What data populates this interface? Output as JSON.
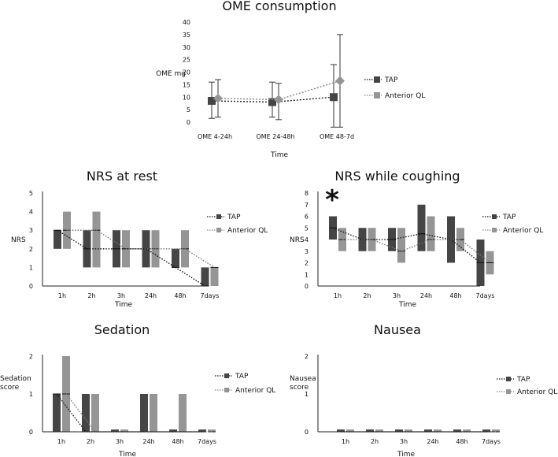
{
  "colors": {
    "tap": "#454545",
    "ql": "#959595",
    "axis": "#222222"
  },
  "chart_data": [
    {
      "id": "ome",
      "type": "line",
      "title": "OME consumption",
      "ylabel": "OME mg",
      "xlabel": "Time",
      "ylim": [
        0,
        40
      ],
      "yticks": [
        "0",
        "5",
        "10",
        "15",
        "20",
        "25",
        "30",
        "35",
        "40"
      ],
      "categories": [
        "OME 4-24h",
        "OME 24-48h",
        "OME 48-7d"
      ],
      "legend": [
        "TAP",
        "Anterior QL"
      ],
      "series": [
        {
          "name": "TAP",
          "values": [
            8.5,
            8,
            10
          ],
          "err_low": [
            1.5,
            2,
            -2
          ],
          "err_high": [
            16,
            16,
            23
          ]
        },
        {
          "name": "Anterior QL",
          "values": [
            9.5,
            9,
            16.5
          ],
          "err_low": [
            2,
            1,
            -2
          ],
          "err_high": [
            17,
            15.5,
            35
          ]
        }
      ]
    },
    {
      "id": "nrs_rest",
      "type": "bar",
      "title": "NRS at rest",
      "ylabel": "NRS",
      "xlabel": "Time",
      "ylim": [
        0,
        5
      ],
      "yticks": [
        "0",
        "1",
        "2",
        "3",
        "4",
        "5"
      ],
      "categories": [
        "1h",
        "2h",
        "3h",
        "24h",
        "48h",
        "7days"
      ],
      "legend": [
        "TAP",
        "Anterior QL"
      ],
      "series": [
        {
          "name": "TAP",
          "low": [
            2,
            1,
            1,
            1,
            1,
            0
          ],
          "high": [
            3,
            3,
            3,
            3,
            2,
            1
          ],
          "median": [
            3,
            2,
            2,
            2,
            1,
            0
          ]
        },
        {
          "name": "Anterior QL",
          "low": [
            2,
            1,
            1,
            1,
            1,
            0
          ],
          "high": [
            4,
            4,
            3,
            3,
            3,
            1
          ],
          "median": [
            3,
            3,
            2,
            2,
            2,
            1
          ]
        }
      ]
    },
    {
      "id": "nrs_cough",
      "type": "bar",
      "title": "NRS while coughing",
      "ylabel": "NRS",
      "xlabel": "Time",
      "ylim": [
        0,
        8
      ],
      "yticks": [
        "0",
        "1",
        "2",
        "3",
        "4",
        "5",
        "6",
        "7",
        "8"
      ],
      "categories": [
        "1h",
        "2h",
        "3h",
        "24h",
        "48h",
        "7days"
      ],
      "legend": [
        "TAP",
        "Anterior QL"
      ],
      "annotation": "*",
      "series": [
        {
          "name": "TAP",
          "low": [
            4,
            3,
            3,
            3,
            2,
            0
          ],
          "high": [
            6,
            5,
            5,
            7,
            6,
            4
          ],
          "median": [
            5,
            4,
            4,
            4.5,
            4,
            2
          ]
        },
        {
          "name": "Anterior QL",
          "low": [
            3,
            3,
            2,
            3,
            3,
            1
          ],
          "high": [
            5,
            5,
            5,
            6,
            5,
            3
          ],
          "median": [
            4,
            4,
            3,
            4,
            4,
            2
          ]
        }
      ]
    },
    {
      "id": "sedation",
      "type": "bar",
      "title": "Sedation",
      "ylabel": "Sedation score",
      "xlabel": "Time",
      "ylim": [
        0,
        2
      ],
      "yticks": [
        "0",
        "1",
        "2"
      ],
      "categories": [
        "1h",
        "2h",
        "3h",
        "24h",
        "48h",
        "7days"
      ],
      "legend": [
        "TAP",
        "Anterior QL"
      ],
      "series": [
        {
          "name": "TAP",
          "low": [
            0,
            0,
            0,
            0,
            0,
            0
          ],
          "high": [
            1,
            1,
            0.06,
            1,
            0.06,
            0.06
          ],
          "median": [
            1,
            0,
            0,
            0,
            0,
            0
          ]
        },
        {
          "name": "Anterior QL",
          "low": [
            0,
            0,
            0,
            0,
            0,
            0
          ],
          "high": [
            2,
            1,
            0.06,
            1,
            1,
            0.06
          ],
          "median": [
            1,
            0,
            0,
            0,
            0,
            0
          ]
        }
      ]
    },
    {
      "id": "nausea",
      "type": "bar",
      "title": "Nausea",
      "ylabel": "Nausea score",
      "xlabel": "Time",
      "ylim": [
        0,
        2
      ],
      "yticks": [
        "0",
        "1",
        "2"
      ],
      "categories": [
        "1h",
        "2h",
        "3h",
        "24h",
        "48h",
        "7days"
      ],
      "legend": [
        "TAP",
        "Anterior QL"
      ],
      "series": [
        {
          "name": "TAP",
          "low": [
            0,
            0,
            0,
            0,
            0,
            0
          ],
          "high": [
            0.06,
            0.06,
            0.06,
            0.06,
            0.06,
            0.06
          ],
          "median": [
            0,
            0,
            0,
            0,
            0,
            0
          ]
        },
        {
          "name": "Anterior QL",
          "low": [
            0,
            0,
            0,
            0,
            0,
            0
          ],
          "high": [
            0.06,
            0.06,
            0.06,
            0.06,
            0.06,
            0.06
          ],
          "median": [
            0,
            0,
            0,
            0,
            0,
            0
          ]
        }
      ]
    }
  ]
}
